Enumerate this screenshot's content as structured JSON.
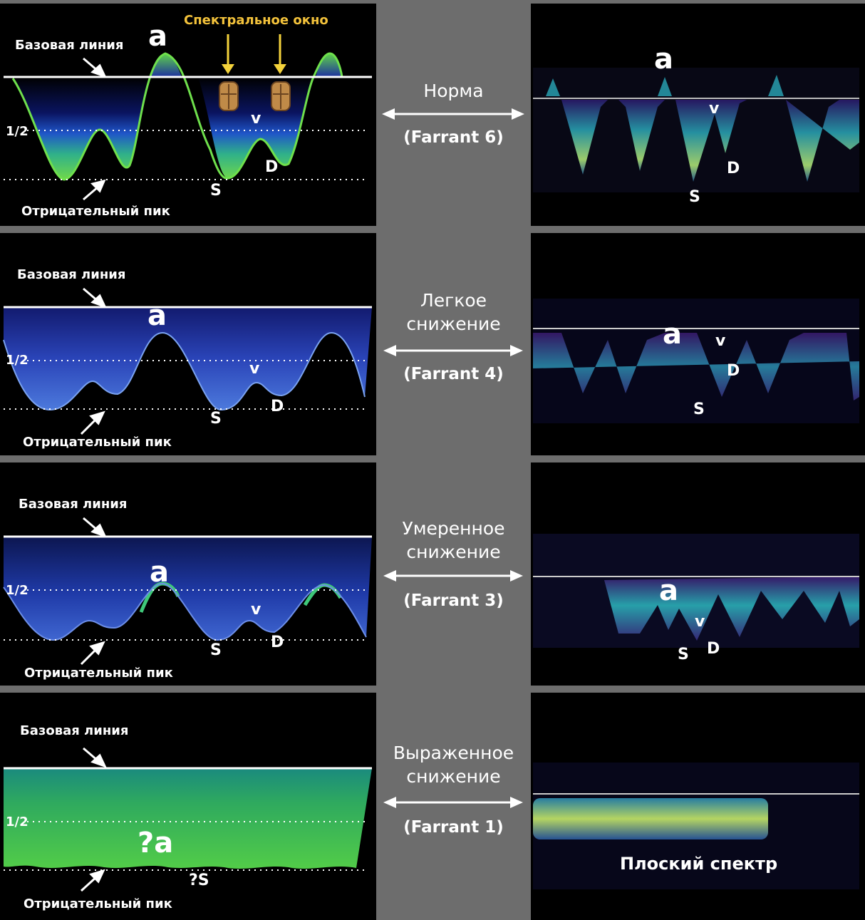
{
  "labels": {
    "baseline": "Базовая линия",
    "neg_peak": "Отрицательный пик",
    "half": "1/2",
    "spectral_window": "Спектральное окно",
    "flat_spectrum": "Плоский спектр"
  },
  "waves": {
    "a": "a",
    "v": "v",
    "s": "S",
    "d": "D",
    "qa": "?a",
    "qs": "?S"
  },
  "panels": [
    {
      "title": "Норма",
      "farrant": "(Farrant 6)"
    },
    {
      "title": "Легкое снижение",
      "farrant": "(Farrant 4)"
    },
    {
      "title": "Умеренное снижение",
      "farrant": "(Farrant 3)"
    },
    {
      "title": "Выраженное снижение",
      "farrant": "(Farrant 1)"
    }
  ],
  "colors": {
    "accent_red": "#e8232b",
    "window_yellow": "#f3d23b",
    "divider_gray": "#6d6d6d"
  }
}
